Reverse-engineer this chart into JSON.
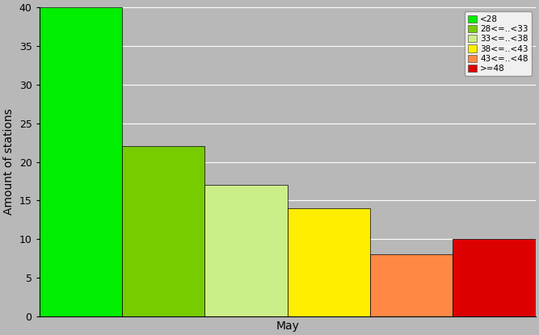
{
  "bars": [
    {
      "label": "<28",
      "value": 40,
      "color": "#00EE00"
    },
    {
      "label": "28<=..<33",
      "value": 22,
      "color": "#77CC00"
    },
    {
      "label": "33<=..<38",
      "value": 17,
      "color": "#CCEE88"
    },
    {
      "label": "38<=..<43",
      "value": 14,
      "color": "#FFEE00"
    },
    {
      "label": "43<=..<48",
      "value": 8,
      "color": "#FF8844"
    },
    {
      "label": ">=48",
      "value": 10,
      "color": "#DD0000"
    }
  ],
  "ylabel": "Amount of stations",
  "xlabel": "May",
  "ylim": [
    0,
    40
  ],
  "yticks": [
    0,
    5,
    10,
    15,
    20,
    25,
    30,
    35,
    40
  ],
  "background_color": "#B8B8B8",
  "legend_fontsize": 7.5,
  "ylabel_fontsize": 10,
  "xlabel_fontsize": 10
}
